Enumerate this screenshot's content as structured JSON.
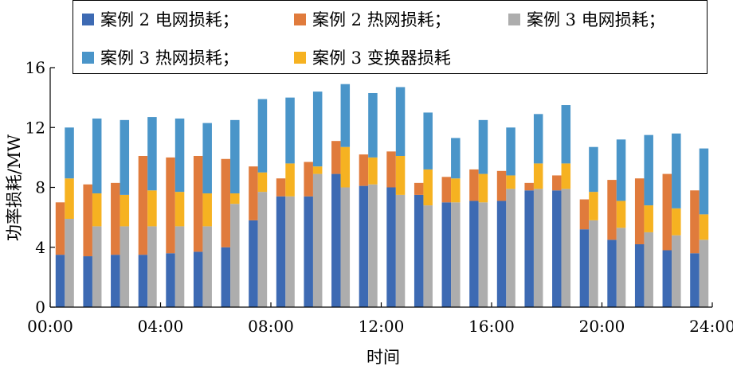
{
  "chart_data": {
    "type": "bar",
    "stacked": true,
    "xlabel": "时间",
    "ylabel": "功率损耗/MW",
    "ylim": [
      0,
      16
    ],
    "yticks": [
      0,
      4,
      8,
      12,
      16
    ],
    "xlim": [
      0,
      24
    ],
    "xticks": [
      "00:00",
      "04:00",
      "08:00",
      "12:00",
      "16:00",
      "20:00",
      "24:00"
    ],
    "legend_placement": "top",
    "hours": [
      1,
      2,
      3,
      4,
      5,
      6,
      7,
      8,
      9,
      10,
      11,
      12,
      13,
      14,
      15,
      16,
      17,
      18,
      19,
      20,
      21,
      22,
      23,
      24
    ],
    "groups": [
      {
        "name": "案例 2",
        "series": [
          {
            "name": "案例 2 电网损耗",
            "color": "#3d6ab3",
            "values": [
              3.5,
              3.4,
              3.5,
              3.5,
              3.6,
              3.7,
              4.0,
              5.8,
              7.4,
              7.4,
              8.9,
              8.1,
              8.0,
              7.5,
              7.0,
              7.1,
              7.1,
              7.8,
              7.8,
              5.2,
              4.5,
              4.2,
              3.8,
              3.6
            ]
          },
          {
            "name": "案例 2 热网损耗",
            "color": "#e07b3c",
            "values": [
              3.5,
              4.8,
              4.8,
              6.6,
              6.4,
              6.4,
              5.9,
              3.6,
              1.2,
              2.3,
              2.2,
              2.1,
              2.4,
              0.8,
              1.7,
              2.1,
              2.0,
              0.5,
              1.0,
              2.0,
              4.0,
              4.4,
              5.1,
              4.2
            ]
          }
        ]
      },
      {
        "name": "案例 3",
        "series": [
          {
            "name": "案例 3 电网损耗",
            "color": "#adadad",
            "values": [
              5.9,
              5.4,
              5.4,
              5.4,
              5.4,
              5.4,
              6.9,
              7.7,
              7.4,
              8.9,
              8.0,
              8.2,
              7.5,
              6.8,
              7.0,
              7.0,
              7.9,
              7.9,
              7.9,
              5.8,
              5.3,
              5.0,
              4.8,
              4.5
            ]
          },
          {
            "name": "案例 3 变换器损耗",
            "color": "#f6b221",
            "values": [
              2.7,
              2.2,
              2.1,
              2.4,
              2.3,
              2.2,
              0.7,
              1.3,
              2.2,
              0.5,
              2.7,
              1.8,
              2.6,
              2.4,
              1.6,
              1.9,
              0.9,
              1.7,
              1.7,
              1.9,
              1.8,
              1.8,
              1.8,
              1.7
            ]
          },
          {
            "name": "案例 3 热网损耗",
            "color": "#4a95c9",
            "values": [
              3.4,
              5.0,
              5.0,
              4.9,
              4.9,
              4.7,
              4.9,
              4.9,
              4.4,
              5.0,
              4.2,
              4.3,
              4.6,
              3.8,
              2.7,
              3.6,
              3.2,
              3.3,
              3.9,
              3.0,
              4.1,
              4.7,
              5.0,
              4.4
            ]
          }
        ]
      }
    ]
  },
  "legend": [
    {
      "label": "案例 2 电网损耗；",
      "color": "#3d6ab3"
    },
    {
      "label": "案例 2 热网损耗；",
      "color": "#e07b3c"
    },
    {
      "label": "案例 3 电网损耗；",
      "color": "#adadad"
    },
    {
      "label": "案例 3 热网损耗；",
      "color": "#4a95c9"
    },
    {
      "label": "案例 3 变换器损耗",
      "color": "#f6b221"
    }
  ]
}
